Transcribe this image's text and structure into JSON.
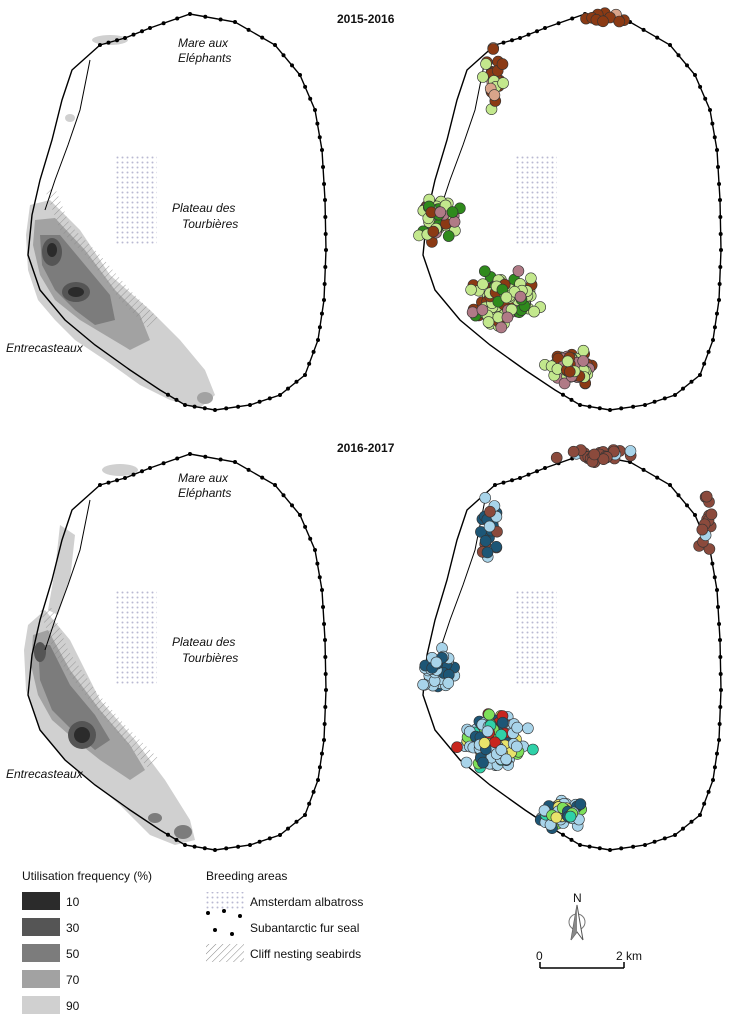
{
  "panels": [
    {
      "year": "2015-2016",
      "places": {
        "north": [
          "Mare aux",
          "Eléphants"
        ],
        "plateau": [
          "Plateau des",
          "Tourbières"
        ],
        "west": "Entrecasteaux"
      }
    },
    {
      "year": "2016-2017",
      "places": {
        "north": [
          "Mare aux",
          "Eléphants"
        ],
        "plateau": [
          "Plateau des",
          "Tourbières"
        ],
        "west": "Entrecasteaux"
      }
    }
  ],
  "legend": {
    "ud_title": "Utilisation frequency (%)",
    "ud_levels": [
      {
        "label": "10",
        "color": "#2b2b2b"
      },
      {
        "label": "30",
        "color": "#555555"
      },
      {
        "label": "50",
        "color": "#7c7c7c"
      },
      {
        "label": "70",
        "color": "#a2a2a2"
      },
      {
        "label": "90",
        "color": "#d0d0d0"
      }
    ],
    "breeding_title": "Breeding areas",
    "breeding_items": [
      "Amsterdam albatross",
      "Subantarctic fur seal",
      "Cliff nesting seabirds"
    ]
  },
  "north_arrow": "N",
  "scalebar": {
    "start": "0",
    "end": "2 km"
  },
  "colors": {
    "coast": "#000000",
    "ud_density": [
      "#2b2b2b",
      "#555555",
      "#7c7c7c",
      "#a2a2a2",
      "#d0d0d0"
    ],
    "points_2015": [
      "#8b3a14",
      "#c3e88d",
      "#2f8a1c",
      "#b07a86",
      "#d9a48a"
    ],
    "points_2016": [
      "#8b4a3c",
      "#a8d4ea",
      "#1d5676",
      "#7ee05a",
      "#2fd1a8",
      "#e8e36b",
      "#c8261e"
    ],
    "albatross_dots": "#b9b9d2"
  }
}
